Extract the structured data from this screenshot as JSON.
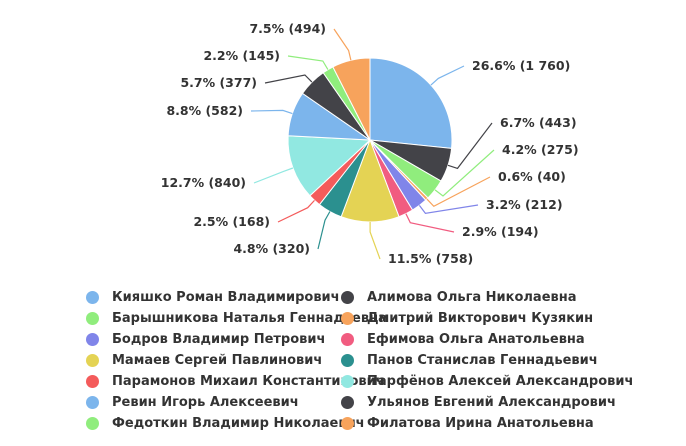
{
  "chart_data": {
    "type": "pie",
    "title": "",
    "slices": [
      {
        "name": "Кияшко Роман Владимирович",
        "value": 1760,
        "label": "26.6% (1 760)",
        "color": "#7cb5ec"
      },
      {
        "name": "Алимова Ольга Николаевна",
        "value": 443,
        "label": "6.7% (443)",
        "color": "#434348"
      },
      {
        "name": "Барышникова Наталья Геннадьевна",
        "value": 275,
        "label": "4.2% (275)",
        "color": "#90ed7d"
      },
      {
        "name": "Дмитрий Викторович Кузякин",
        "value": 40,
        "label": "0.6% (40)",
        "color": "#f7a35c"
      },
      {
        "name": "Бодров Владимир Петрович",
        "value": 212,
        "label": "3.2% (212)",
        "color": "#8085e9"
      },
      {
        "name": "Ефимова Ольга Анатольевна",
        "value": 194,
        "label": "2.9% (194)",
        "color": "#f15c80"
      },
      {
        "name": "Мамаев Сергей Павлинович",
        "value": 758,
        "label": "11.5% (758)",
        "color": "#e4d354"
      },
      {
        "name": "Панов Станислав Геннадьевич",
        "value": 320,
        "label": "4.8% (320)",
        "color": "#2b908f"
      },
      {
        "name": "Парамонов Михаил Константинович",
        "value": 168,
        "label": "2.5% (168)",
        "color": "#f45b5b"
      },
      {
        "name": "Парфёнов Алексей Александрович",
        "value": 840,
        "label": "12.7% (840)",
        "color": "#91e8e1"
      },
      {
        "name": "Ревин Игорь Алексеевич",
        "value": 582,
        "label": "8.8% (582)",
        "color": "#7cb5ec"
      },
      {
        "name": "Ульянов Евгений Александрович",
        "value": 377,
        "label": "5.7% (377)",
        "color": "#434348"
      },
      {
        "name": "Федоткин Владимир Николаевич",
        "value": 145,
        "label": "2.2% (145)",
        "color": "#90ed7d"
      },
      {
        "name": "Филатова Ирина Анатольевна",
        "value": 494,
        "label": "7.5% (494)",
        "color": "#f7a35c"
      }
    ],
    "legend_position": "bottom"
  }
}
